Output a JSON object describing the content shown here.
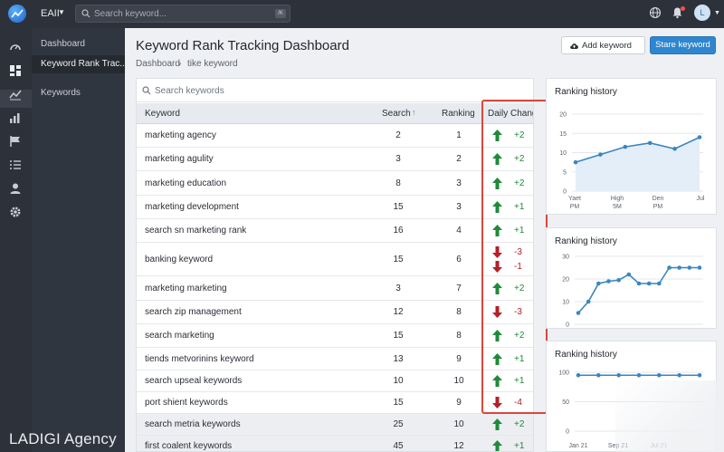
{
  "topbar": {
    "workspace": "EAII",
    "search_placeholder": "Search keyword...",
    "search_kbd": "/K",
    "avatar_initial": "L"
  },
  "sidebar": {
    "items": [
      {
        "label": "Dashboard"
      },
      {
        "label": "Keyword Rank Trac..."
      },
      {
        "label": "Keywords"
      }
    ],
    "brand": "LADIGI Agency"
  },
  "header": {
    "title": "Keyword Rank Tracking Dashboard",
    "breadcrumb": [
      "Dashboard",
      "tike keyword"
    ],
    "add_keyword_label": "Add keyword",
    "stare_keyword_label": "Stare keyword"
  },
  "table": {
    "search_placeholder": "Search keywords",
    "columns": {
      "keyword": "Keyword",
      "search": "Search",
      "ranking": "Ranking",
      "daily_change": "Daily Change"
    },
    "sort_glyph": "↑",
    "rows": [
      {
        "keyword": "marketing agency",
        "search": "2",
        "ranking": "1",
        "changes": [
          {
            "dir": "up",
            "value": "+2"
          }
        ]
      },
      {
        "keyword": "marketing agulity",
        "search": "3",
        "ranking": "2",
        "changes": [
          {
            "dir": "up",
            "value": "+2"
          }
        ]
      },
      {
        "keyword": "marketing education",
        "search": "8",
        "ranking": "3",
        "changes": [
          {
            "dir": "up",
            "value": "+2"
          }
        ]
      },
      {
        "keyword": "marketing development",
        "search": "15",
        "ranking": "3",
        "changes": [
          {
            "dir": "up",
            "value": "+1"
          }
        ]
      },
      {
        "keyword": "search sn marketing rank",
        "search": "16",
        "ranking": "4",
        "changes": [
          {
            "dir": "up",
            "value": "+1"
          }
        ]
      },
      {
        "keyword": "banking keyword",
        "search": "15",
        "ranking": "6",
        "changes": [
          {
            "dir": "down",
            "value": "-3"
          },
          {
            "dir": "down",
            "value": "-1"
          }
        ]
      },
      {
        "keyword": "marketing marketing",
        "search": "3",
        "ranking": "7",
        "changes": [
          {
            "dir": "up",
            "value": "+2"
          }
        ]
      },
      {
        "keyword": "search zip management",
        "search": "12",
        "ranking": "8",
        "changes": [
          {
            "dir": "down",
            "value": "-3"
          }
        ]
      },
      {
        "keyword": "search marketing",
        "search": "15",
        "ranking": "8",
        "changes": [
          {
            "dir": "up",
            "value": "+2"
          }
        ]
      },
      {
        "keyword": "tiends metvorinins keyword",
        "search": "13",
        "ranking": "9",
        "changes": [
          {
            "dir": "up",
            "value": "+1"
          }
        ]
      },
      {
        "keyword": "search upseal keywords",
        "search": "10",
        "ranking": "10",
        "changes": [
          {
            "dir": "up",
            "value": "+1"
          }
        ]
      },
      {
        "keyword": "port shient keywords",
        "search": "15",
        "ranking": "9",
        "changes": [
          {
            "dir": "down",
            "value": "-4"
          }
        ]
      },
      {
        "keyword": "search metria keywords",
        "search": "25",
        "ranking": "10",
        "changes": [
          {
            "dir": "up",
            "value": "+2"
          }
        ]
      },
      {
        "keyword": "first coalent keywords",
        "search": "45",
        "ranking": "12",
        "changes": [
          {
            "dir": "up",
            "value": "+1"
          }
        ]
      }
    ]
  },
  "colors": {
    "accent": "#2f86cf",
    "up": "#1f8a3a",
    "down": "#b3202a",
    "highlight": "#d9473f",
    "chart_line": "#3a86bf"
  },
  "chart_data": [
    {
      "type": "area",
      "title": "Ranking history",
      "x": [
        "Yaet",
        "",
        "High",
        "",
        "Den",
        "Jul"
      ],
      "tick_labels": [
        {
          "line1": "Yaet",
          "line2": "PM"
        },
        {
          "line1": "High",
          "line2": "5M"
        },
        {
          "line1": "Den",
          "line2": "PM"
        },
        {
          "line1": "Jul",
          "line2": ""
        }
      ],
      "values": [
        7.5,
        9.5,
        11.5,
        12.5,
        11,
        14
      ],
      "yticks": [
        0,
        5,
        10,
        15,
        20
      ],
      "ylim": [
        0,
        20
      ],
      "grid": true
    },
    {
      "type": "line",
      "title": "Ranking history",
      "values": [
        5,
        10,
        18,
        19,
        19.5,
        22,
        18,
        18,
        18,
        25,
        25,
        25,
        25
      ],
      "yticks": [
        0,
        10,
        20,
        30
      ],
      "ylim": [
        0,
        30
      ],
      "grid": true
    },
    {
      "type": "line",
      "title": "Ranking history",
      "x_tick_labels": [
        "Jan 21",
        "Sep 21",
        "Jul 21"
      ],
      "values": [
        95,
        95,
        95,
        95,
        95,
        95,
        95
      ],
      "yticks": [
        0,
        50,
        100
      ],
      "ylim": [
        0,
        100
      ],
      "grid": true
    }
  ]
}
